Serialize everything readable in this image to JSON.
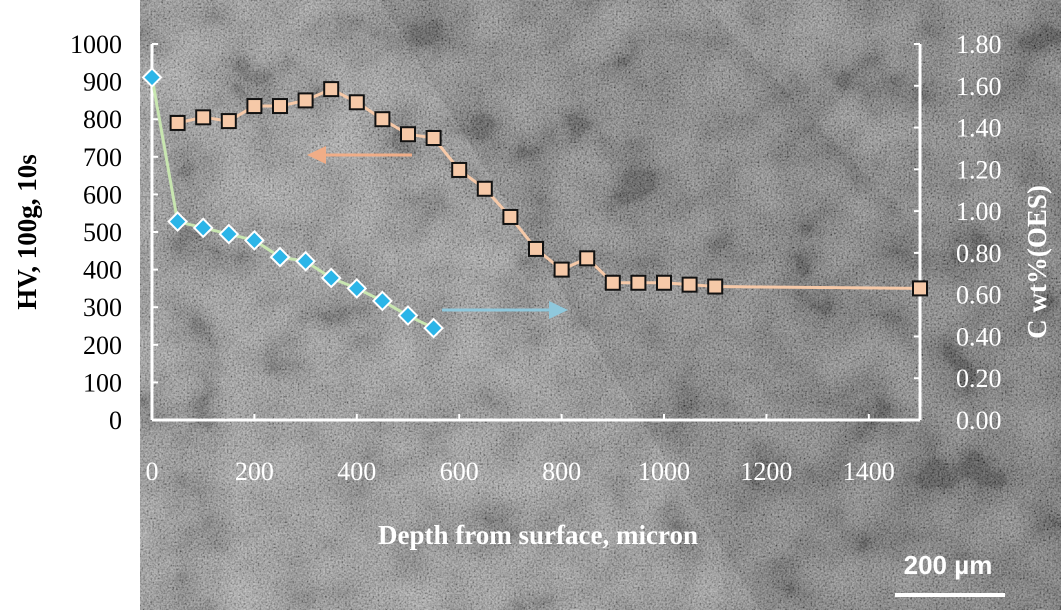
{
  "chart_data": {
    "type": "scatter",
    "xlabel": "Depth from surface, micron",
    "ylabel": "HV, 100g, 10s",
    "y2label": "C wt%(OES)",
    "xlim": [
      0,
      1500
    ],
    "ylim": [
      0,
      1000
    ],
    "y2lim": [
      0,
      1.8
    ],
    "x_ticks": [
      "0",
      "200",
      "400",
      "600",
      "800",
      "1000",
      "1200",
      "1400"
    ],
    "y_ticks": [
      "0",
      "100",
      "200",
      "300",
      "400",
      "500",
      "600",
      "700",
      "800",
      "900",
      "1000"
    ],
    "y2_ticks": [
      "0.00",
      "0.20",
      "0.40",
      "0.60",
      "0.80",
      "1.00",
      "1.20",
      "1.40",
      "1.60",
      "1.80"
    ],
    "grid": false,
    "background": "micrograph",
    "series": [
      {
        "axis": "left",
        "marker": "square",
        "color": "#f6c9a8",
        "x": [
          0,
          50,
          100,
          150,
          200,
          250,
          300,
          350,
          400,
          450,
          500,
          550,
          600,
          650,
          700,
          750,
          800,
          850,
          900,
          950,
          1000,
          1050,
          1100,
          1500
        ],
        "y": [
          null,
          790,
          805,
          795,
          835,
          835,
          850,
          880,
          845,
          800,
          760,
          750,
          665,
          615,
          540,
          455,
          400,
          430,
          365,
          365,
          365,
          360,
          355,
          350
        ]
      },
      {
        "axis": "right",
        "marker": "diamond",
        "color": "#2bb5e8",
        "line_color": "#c8e6b0",
        "x": [
          0,
          50,
          100,
          150,
          200,
          250,
          300,
          350,
          400,
          450,
          500,
          550
        ],
        "y": [
          1.64,
          0.95,
          0.92,
          0.89,
          0.86,
          0.78,
          0.76,
          0.68,
          0.63,
          0.57,
          0.5,
          0.44
        ]
      }
    ],
    "annotations": [
      {
        "type": "arrow",
        "direction": "left",
        "color": "#f0ad87",
        "points_to": "left-axis"
      },
      {
        "type": "arrow",
        "direction": "right",
        "color": "#8fc8dc",
        "points_to": "right-axis"
      }
    ]
  },
  "scale_bar": {
    "label": "200 µm"
  }
}
